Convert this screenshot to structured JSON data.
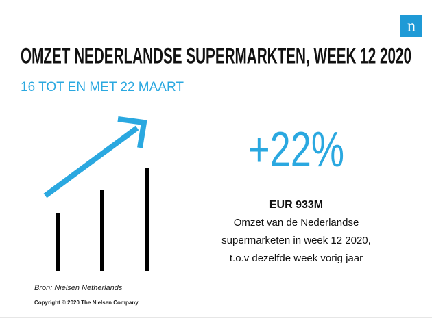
{
  "logo": "n",
  "header": {
    "title": "OMZET NEDERLANDSE SUPERMARKTEN, WEEK 12 2020",
    "subtitle": "16 TOT EN MET 22 MAART"
  },
  "highlight": {
    "change": "+22%",
    "amount": "EUR 933M",
    "description": [
      "Omzet van de Nederlandse",
      "supermarketen in week 12 2020,",
      "t.o.v dezelfde week vorig jaar"
    ]
  },
  "footer": {
    "source": "Bron: Nielsen Netherlands",
    "copyright": "Copyright © 2020 The Nielsen Company"
  }
}
